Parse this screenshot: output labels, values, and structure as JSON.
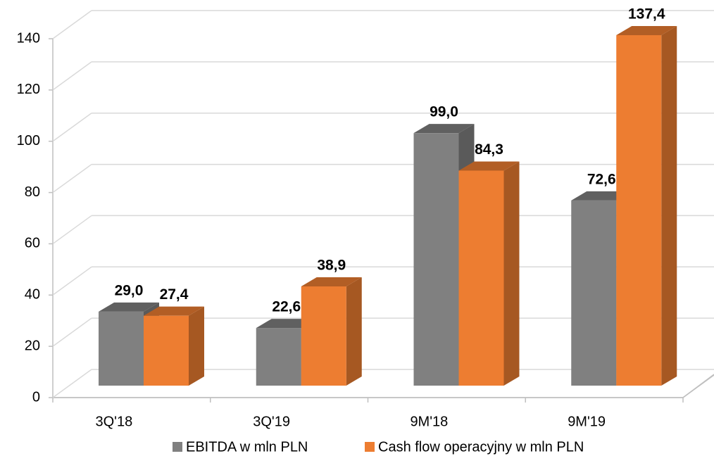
{
  "chart_data": {
    "type": "bar3d",
    "categories": [
      "3Q'18",
      "3Q'19",
      "9M'18",
      "9M'19"
    ],
    "series": [
      {
        "name": "EBITDA w mln PLN",
        "color": "#808080",
        "values": [
          29.0,
          22.6,
          99.0,
          72.6
        ],
        "value_labels": [
          "29,0",
          "22,6",
          "99,0",
          "72,6"
        ]
      },
      {
        "name": "Cash flow operacyjny w mln PLN",
        "color": "#ED7D31",
        "values": [
          27.4,
          38.9,
          84.3,
          137.4
        ],
        "value_labels": [
          "27,4",
          "38,9",
          "84,3",
          "137,4"
        ]
      }
    ],
    "ylim": [
      0,
      140
    ],
    "yticks": [
      0,
      20,
      40,
      60,
      80,
      100,
      120,
      140
    ],
    "grid": true,
    "legend": "bottom"
  }
}
